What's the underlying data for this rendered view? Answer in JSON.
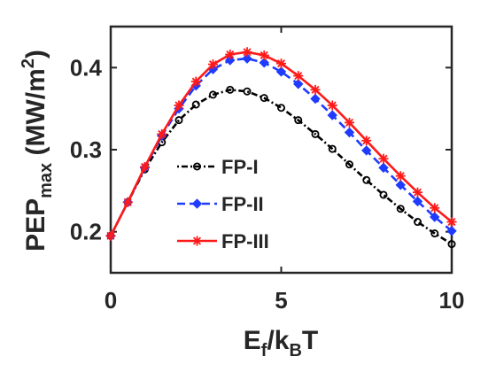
{
  "chart_data": {
    "type": "line",
    "xlabel": {
      "main": "E",
      "sub1": "f",
      "mid": "/k",
      "sub2": "B",
      "end": "T"
    },
    "ylabel": {
      "main": "PEP",
      "sub": "max",
      "unit_open": " (MW/m",
      "unit_sup": "2",
      "unit_close": ")"
    },
    "xlim": [
      0,
      10
    ],
    "ylim": [
      0.15,
      0.45
    ],
    "xticks": [
      0,
      5,
      10
    ],
    "xtick_labels": [
      "0",
      "5",
      "10"
    ],
    "yticks": [
      0.2,
      0.3,
      0.4
    ],
    "ytick_labels": [
      "0.2",
      "0.3",
      "0.4"
    ],
    "grid": false,
    "legend_position": "center-left",
    "x": [
      0,
      0.5,
      1,
      1.5,
      2,
      2.5,
      3,
      3.5,
      4,
      4.5,
      5,
      5.5,
      6,
      6.5,
      7,
      7.5,
      8,
      8.5,
      9,
      9.5,
      10
    ],
    "series": [
      {
        "name": "FP-I",
        "color": "#000000",
        "line_style": "dotted-dash",
        "marker": "circle",
        "values": [
          0.195,
          0.236,
          0.276,
          0.309,
          0.336,
          0.355,
          0.367,
          0.373,
          0.371,
          0.363,
          0.351,
          0.336,
          0.319,
          0.301,
          0.282,
          0.263,
          0.245,
          0.228,
          0.212,
          0.198,
          0.185
        ]
      },
      {
        "name": "FP-II",
        "color": "#1f3bff",
        "line_style": "dashed",
        "marker": "diamond",
        "values": [
          0.195,
          0.236,
          0.278,
          0.317,
          0.35,
          0.378,
          0.398,
          0.409,
          0.411,
          0.406,
          0.395,
          0.38,
          0.362,
          0.342,
          0.321,
          0.299,
          0.278,
          0.257,
          0.237,
          0.218,
          0.201
        ]
      },
      {
        "name": "FP-III",
        "color": "#ff1a1a",
        "line_style": "solid",
        "marker": "star",
        "values": [
          0.195,
          0.236,
          0.279,
          0.319,
          0.354,
          0.383,
          0.404,
          0.416,
          0.419,
          0.415,
          0.405,
          0.39,
          0.373,
          0.354,
          0.333,
          0.311,
          0.289,
          0.268,
          0.248,
          0.229,
          0.212
        ]
      }
    ]
  }
}
